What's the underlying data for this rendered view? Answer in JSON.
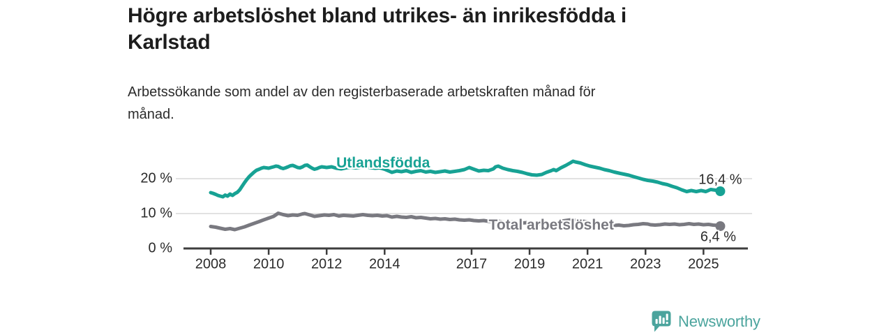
{
  "header": {
    "title_line1": "Högre arbetslöshet bland utrikes- än inrikesfödda i",
    "title_line2": "Karlstad",
    "subtitle_line1": "Arbetssökande som andel av den registerbaserade arbetskraften månad för",
    "subtitle_line2": "månad."
  },
  "footer": {
    "brand": "Newsworthy"
  },
  "colors": {
    "series_foreign_born": "#17A294",
    "series_total": "#797980",
    "axis": "#3d3d3d",
    "grid": "#d9d9d9",
    "text": "#2b2b2b",
    "brand": "#4BA49D"
  },
  "chart_data": {
    "type": "line",
    "title": "Högre arbetslöshet bland utrikes- än inrikesfödda i Karlstad",
    "subtitle": "Arbetssökande som andel av den registerbaserade arbetskraften månad för månad.",
    "unit": "%",
    "x_axis": {
      "tick_years": [
        2008,
        2010,
        2012,
        2014,
        2017,
        2019,
        2021,
        2023,
        2025
      ],
      "tick_labels": [
        "2008",
        "2010",
        "2012",
        "2014",
        "2017",
        "2019",
        "2021",
        "2023",
        "2025"
      ],
      "range_years": [
        2007.06,
        2026.5
      ]
    },
    "y_axis": {
      "tick_values": [
        0,
        10,
        20
      ],
      "tick_labels": [
        "0 %",
        "10 %",
        "20 %"
      ],
      "gridline_values": [
        10,
        20
      ],
      "range": [
        0,
        26.5
      ]
    },
    "series": [
      {
        "name": "Utlandsfödda",
        "color": "#17A294",
        "end_label": "16,4 %",
        "end_value": 16.4,
        "label_pos": [
          2013.95,
          24.4
        ],
        "end_label_side": "above",
        "points": [
          [
            2008.0,
            16.0
          ],
          [
            2008.08,
            15.8
          ],
          [
            2008.17,
            15.5
          ],
          [
            2008.25,
            15.2
          ],
          [
            2008.33,
            15.0
          ],
          [
            2008.42,
            14.8
          ],
          [
            2008.5,
            15.3
          ],
          [
            2008.58,
            15.0
          ],
          [
            2008.67,
            15.6
          ],
          [
            2008.75,
            15.2
          ],
          [
            2008.83,
            15.7
          ],
          [
            2008.92,
            16.1
          ],
          [
            2009.0,
            16.8
          ],
          [
            2009.08,
            17.8
          ],
          [
            2009.17,
            18.9
          ],
          [
            2009.25,
            19.8
          ],
          [
            2009.33,
            20.6
          ],
          [
            2009.42,
            21.3
          ],
          [
            2009.5,
            21.9
          ],
          [
            2009.58,
            22.4
          ],
          [
            2009.67,
            22.7
          ],
          [
            2009.75,
            23.0
          ],
          [
            2009.83,
            23.2
          ],
          [
            2009.92,
            23.1
          ],
          [
            2010.0,
            23.0
          ],
          [
            2010.08,
            23.2
          ],
          [
            2010.17,
            23.4
          ],
          [
            2010.25,
            23.6
          ],
          [
            2010.33,
            23.5
          ],
          [
            2010.42,
            23.1
          ],
          [
            2010.5,
            22.9
          ],
          [
            2010.58,
            23.1
          ],
          [
            2010.67,
            23.4
          ],
          [
            2010.75,
            23.7
          ],
          [
            2010.83,
            23.8
          ],
          [
            2010.92,
            23.5
          ],
          [
            2011.0,
            23.2
          ],
          [
            2011.08,
            23.1
          ],
          [
            2011.17,
            23.4
          ],
          [
            2011.25,
            23.8
          ],
          [
            2011.33,
            23.9
          ],
          [
            2011.42,
            23.4
          ],
          [
            2011.5,
            23.0
          ],
          [
            2011.58,
            22.7
          ],
          [
            2011.67,
            22.9
          ],
          [
            2011.75,
            23.2
          ],
          [
            2011.83,
            23.4
          ],
          [
            2011.92,
            23.3
          ],
          [
            2012.0,
            23.2
          ],
          [
            2012.17,
            23.4
          ],
          [
            2012.33,
            23.0
          ],
          [
            2012.5,
            22.8
          ],
          [
            2012.67,
            23.1
          ],
          [
            2012.83,
            23.3
          ],
          [
            2013.0,
            23.1
          ],
          [
            2013.17,
            23.3
          ],
          [
            2013.33,
            23.4
          ],
          [
            2013.5,
            23.2
          ],
          [
            2013.67,
            23.0
          ],
          [
            2013.83,
            23.1
          ],
          [
            2014.0,
            22.7
          ],
          [
            2014.17,
            22.1
          ],
          [
            2014.25,
            21.8
          ],
          [
            2014.42,
            22.2
          ],
          [
            2014.58,
            22.0
          ],
          [
            2014.75,
            22.3
          ],
          [
            2014.92,
            21.8
          ],
          [
            2015.08,
            22.1
          ],
          [
            2015.25,
            22.3
          ],
          [
            2015.42,
            21.9
          ],
          [
            2015.58,
            22.1
          ],
          [
            2015.75,
            21.8
          ],
          [
            2015.92,
            22.0
          ],
          [
            2016.08,
            22.2
          ],
          [
            2016.25,
            21.9
          ],
          [
            2016.42,
            22.1
          ],
          [
            2016.58,
            22.3
          ],
          [
            2016.75,
            22.6
          ],
          [
            2016.92,
            23.2
          ],
          [
            2017.08,
            22.7
          ],
          [
            2017.25,
            22.2
          ],
          [
            2017.42,
            22.4
          ],
          [
            2017.58,
            22.3
          ],
          [
            2017.75,
            22.8
          ],
          [
            2017.83,
            23.4
          ],
          [
            2017.92,
            23.6
          ],
          [
            2018.08,
            23.0
          ],
          [
            2018.25,
            22.6
          ],
          [
            2018.42,
            22.3
          ],
          [
            2018.58,
            22.1
          ],
          [
            2018.75,
            21.8
          ],
          [
            2018.92,
            21.4
          ],
          [
            2019.08,
            21.1
          ],
          [
            2019.25,
            21.0
          ],
          [
            2019.42,
            21.2
          ],
          [
            2019.58,
            21.8
          ],
          [
            2019.75,
            22.3
          ],
          [
            2019.83,
            22.6
          ],
          [
            2019.92,
            22.3
          ],
          [
            2020.08,
            23.1
          ],
          [
            2020.25,
            23.8
          ],
          [
            2020.42,
            24.6
          ],
          [
            2020.5,
            25.0
          ],
          [
            2020.58,
            24.8
          ],
          [
            2020.75,
            24.5
          ],
          [
            2020.92,
            24.0
          ],
          [
            2021.08,
            23.6
          ],
          [
            2021.25,
            23.3
          ],
          [
            2021.42,
            23.0
          ],
          [
            2021.58,
            22.6
          ],
          [
            2021.75,
            22.3
          ],
          [
            2021.92,
            21.9
          ],
          [
            2022.08,
            21.6
          ],
          [
            2022.25,
            21.3
          ],
          [
            2022.42,
            21.0
          ],
          [
            2022.58,
            20.6
          ],
          [
            2022.75,
            20.2
          ],
          [
            2022.92,
            19.8
          ],
          [
            2023.08,
            19.5
          ],
          [
            2023.25,
            19.3
          ],
          [
            2023.42,
            19.0
          ],
          [
            2023.58,
            18.6
          ],
          [
            2023.75,
            18.3
          ],
          [
            2023.92,
            17.8
          ],
          [
            2024.08,
            17.4
          ],
          [
            2024.25,
            16.8
          ],
          [
            2024.42,
            16.3
          ],
          [
            2024.58,
            16.6
          ],
          [
            2024.75,
            16.3
          ],
          [
            2024.92,
            16.6
          ],
          [
            2025.08,
            16.3
          ],
          [
            2025.25,
            16.9
          ],
          [
            2025.42,
            16.7
          ],
          [
            2025.58,
            16.4
          ]
        ]
      },
      {
        "name": "Total arbetslöshet",
        "color": "#797980",
        "end_label": "6,4 %",
        "end_value": 6.4,
        "label_pos": [
          2019.75,
          6.7
        ],
        "end_label_side": "below",
        "points": [
          [
            2008.0,
            6.3
          ],
          [
            2008.17,
            6.1
          ],
          [
            2008.33,
            5.8
          ],
          [
            2008.5,
            5.5
          ],
          [
            2008.67,
            5.7
          ],
          [
            2008.83,
            5.4
          ],
          [
            2009.0,
            5.8
          ],
          [
            2009.17,
            6.2
          ],
          [
            2009.33,
            6.7
          ],
          [
            2009.5,
            7.2
          ],
          [
            2009.67,
            7.7
          ],
          [
            2009.83,
            8.2
          ],
          [
            2010.0,
            8.7
          ],
          [
            2010.17,
            9.2
          ],
          [
            2010.33,
            10.1
          ],
          [
            2010.5,
            9.7
          ],
          [
            2010.67,
            9.4
          ],
          [
            2010.83,
            9.6
          ],
          [
            2011.0,
            9.5
          ],
          [
            2011.17,
            9.9
          ],
          [
            2011.25,
            10.0
          ],
          [
            2011.42,
            9.6
          ],
          [
            2011.58,
            9.2
          ],
          [
            2011.75,
            9.4
          ],
          [
            2011.92,
            9.6
          ],
          [
            2012.08,
            9.5
          ],
          [
            2012.25,
            9.7
          ],
          [
            2012.42,
            9.3
          ],
          [
            2012.58,
            9.5
          ],
          [
            2012.75,
            9.4
          ],
          [
            2012.92,
            9.3
          ],
          [
            2013.08,
            9.5
          ],
          [
            2013.25,
            9.7
          ],
          [
            2013.42,
            9.5
          ],
          [
            2013.58,
            9.4
          ],
          [
            2013.75,
            9.5
          ],
          [
            2013.92,
            9.3
          ],
          [
            2014.08,
            9.4
          ],
          [
            2014.25,
            9.0
          ],
          [
            2014.42,
            9.2
          ],
          [
            2014.58,
            9.0
          ],
          [
            2014.75,
            8.9
          ],
          [
            2014.92,
            9.1
          ],
          [
            2015.08,
            8.8
          ],
          [
            2015.25,
            8.9
          ],
          [
            2015.42,
            8.7
          ],
          [
            2015.58,
            8.5
          ],
          [
            2015.75,
            8.6
          ],
          [
            2015.92,
            8.4
          ],
          [
            2016.08,
            8.5
          ],
          [
            2016.25,
            8.3
          ],
          [
            2016.42,
            8.4
          ],
          [
            2016.58,
            8.2
          ],
          [
            2016.75,
            8.1
          ],
          [
            2016.92,
            8.2
          ],
          [
            2017.08,
            8.0
          ],
          [
            2017.25,
            7.9
          ],
          [
            2017.42,
            8.0
          ],
          [
            2017.58,
            7.8
          ],
          [
            2017.75,
            7.7
          ],
          [
            2017.92,
            7.8
          ],
          [
            2018.08,
            7.6
          ],
          [
            2018.25,
            7.5
          ],
          [
            2018.42,
            7.6
          ],
          [
            2018.58,
            7.4
          ],
          [
            2018.75,
            7.3
          ],
          [
            2018.92,
            7.4
          ],
          [
            2019.08,
            7.2
          ],
          [
            2019.25,
            7.1
          ],
          [
            2019.42,
            7.0
          ],
          [
            2019.58,
            7.1
          ],
          [
            2019.75,
            7.3
          ],
          [
            2019.92,
            7.5
          ],
          [
            2020.08,
            7.8
          ],
          [
            2020.25,
            8.0
          ],
          [
            2020.42,
            8.2
          ],
          [
            2020.58,
            8.1
          ],
          [
            2020.75,
            7.9
          ],
          [
            2020.92,
            7.7
          ],
          [
            2021.08,
            7.5
          ],
          [
            2021.25,
            7.3
          ],
          [
            2021.42,
            7.1
          ],
          [
            2021.58,
            6.9
          ],
          [
            2021.75,
            6.8
          ],
          [
            2021.92,
            6.6
          ],
          [
            2022.08,
            6.7
          ],
          [
            2022.25,
            6.5
          ],
          [
            2022.42,
            6.6
          ],
          [
            2022.58,
            6.8
          ],
          [
            2022.75,
            6.9
          ],
          [
            2022.92,
            7.1
          ],
          [
            2023.08,
            7.0
          ],
          [
            2023.17,
            6.8
          ],
          [
            2023.33,
            6.7
          ],
          [
            2023.5,
            6.8
          ],
          [
            2023.67,
            7.0
          ],
          [
            2023.83,
            6.9
          ],
          [
            2024.0,
            7.0
          ],
          [
            2024.17,
            6.8
          ],
          [
            2024.33,
            6.9
          ],
          [
            2024.5,
            7.1
          ],
          [
            2024.67,
            6.9
          ],
          [
            2024.83,
            7.0
          ],
          [
            2025.0,
            6.8
          ],
          [
            2025.17,
            6.9
          ],
          [
            2025.33,
            6.7
          ],
          [
            2025.5,
            6.6
          ],
          [
            2025.58,
            6.4
          ]
        ]
      }
    ],
    "grid": true,
    "legend_position": "inline-labels"
  }
}
